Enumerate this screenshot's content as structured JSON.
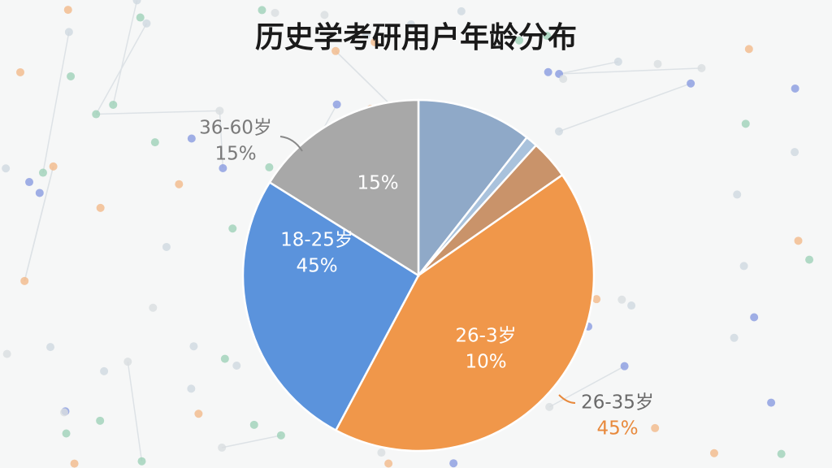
{
  "chart_data": {
    "type": "pie",
    "title": "历史学考研用户年龄分布",
    "values": [
      10.6,
      1.1,
      3.6,
      42.5,
      26.1,
      16.1
    ],
    "colors": [
      "#8fa9c8",
      "#a9c2dc",
      "#c9936a",
      "#f0974a",
      "#5b93dc",
      "#a8a8a8"
    ],
    "annotations": [
      {
        "lines": [
          "36-60岁",
          "15%"
        ]
      },
      {
        "lines": [
          "15%"
        ]
      },
      {
        "lines": [
          "18-25岁",
          "45%"
        ]
      },
      {
        "lines": [
          "26-3岁",
          "10%"
        ]
      },
      {
        "lines": [
          "26-35岁",
          "45%"
        ]
      }
    ]
  }
}
